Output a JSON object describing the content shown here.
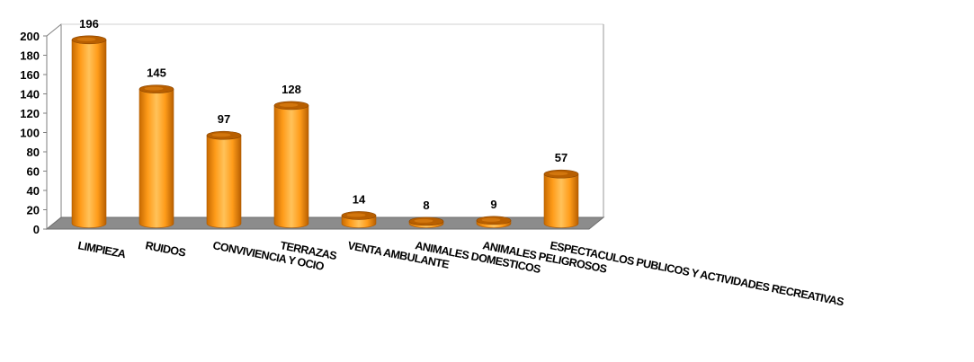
{
  "chart_data": {
    "type": "bar",
    "title": "",
    "xlabel": "",
    "ylabel": "",
    "ylim": [
      0,
      200
    ],
    "yticks": [
      0,
      20,
      40,
      60,
      80,
      100,
      120,
      140,
      160,
      180,
      200
    ],
    "grid": false,
    "legend": "none",
    "categories": [
      "LIMPIEZA",
      "RUIDOS",
      "CONVIVIENCIA Y OCIO",
      "TERRAZAS",
      "VENTA AMBULANTE",
      "ANIMALES DOMESTICOS",
      "ANIMALES PELIGROSOS",
      "ESPECTACULOS PUBLICOS Y  ACTIVIDADES RECREATIVAS"
    ],
    "values": [
      196,
      145,
      97,
      128,
      14,
      8,
      9,
      57
    ],
    "colors": {
      "bar": "#ff9900",
      "bar_light": "#ffc25a",
      "bar_dark": "#b85f00",
      "floor": "#8c8c8c"
    }
  }
}
